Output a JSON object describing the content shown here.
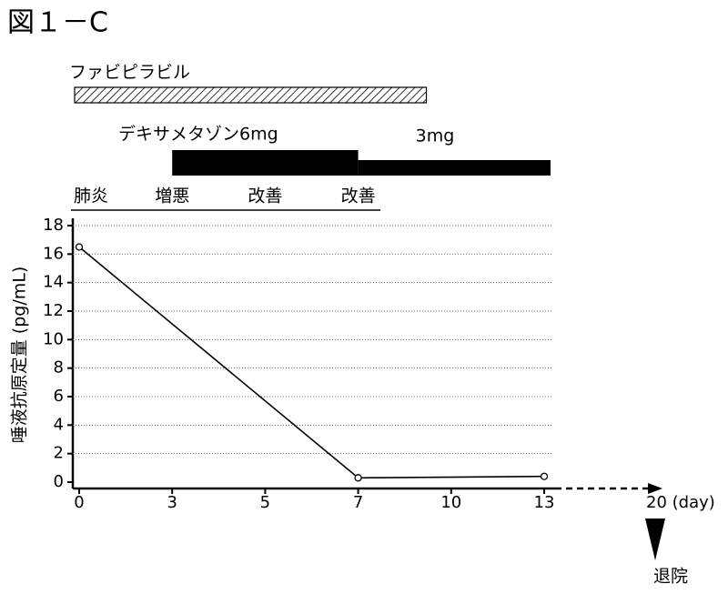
{
  "chart_data": {
    "type": "line",
    "title": "図１－C",
    "ylabel": "唾液抗原定量 (pg/mL)",
    "x": [
      0,
      7,
      13
    ],
    "values": [
      16.5,
      0.3,
      0.4
    ],
    "color": "#000000",
    "xlim": [
      0,
      20
    ],
    "xticks": [
      0,
      3,
      5,
      7,
      10,
      13,
      {
        "value": 20,
        "label": "20 (day)"
      }
    ],
    "ylim": [
      0,
      18
    ],
    "yticks": [
      0,
      2,
      4,
      6,
      8,
      10,
      12,
      14,
      16,
      18
    ],
    "grid": true,
    "treatments": [
      {
        "name": "ファビピラビル",
        "start": 0,
        "end": 9.2,
        "style": "hatched"
      },
      {
        "name": "デキサメタゾン6mg",
        "start": 3,
        "end": 7,
        "style": "thick"
      },
      {
        "name": "3mg",
        "start": 7,
        "end": 13.4,
        "style": "thin"
      }
    ],
    "course": [
      {
        "label": "肺炎",
        "day": 0
      },
      {
        "label": "増悪",
        "day": 3
      },
      {
        "label": "改善",
        "day": 5
      },
      {
        "label": "改善",
        "day": 7
      }
    ],
    "discharge_label": "退院"
  }
}
